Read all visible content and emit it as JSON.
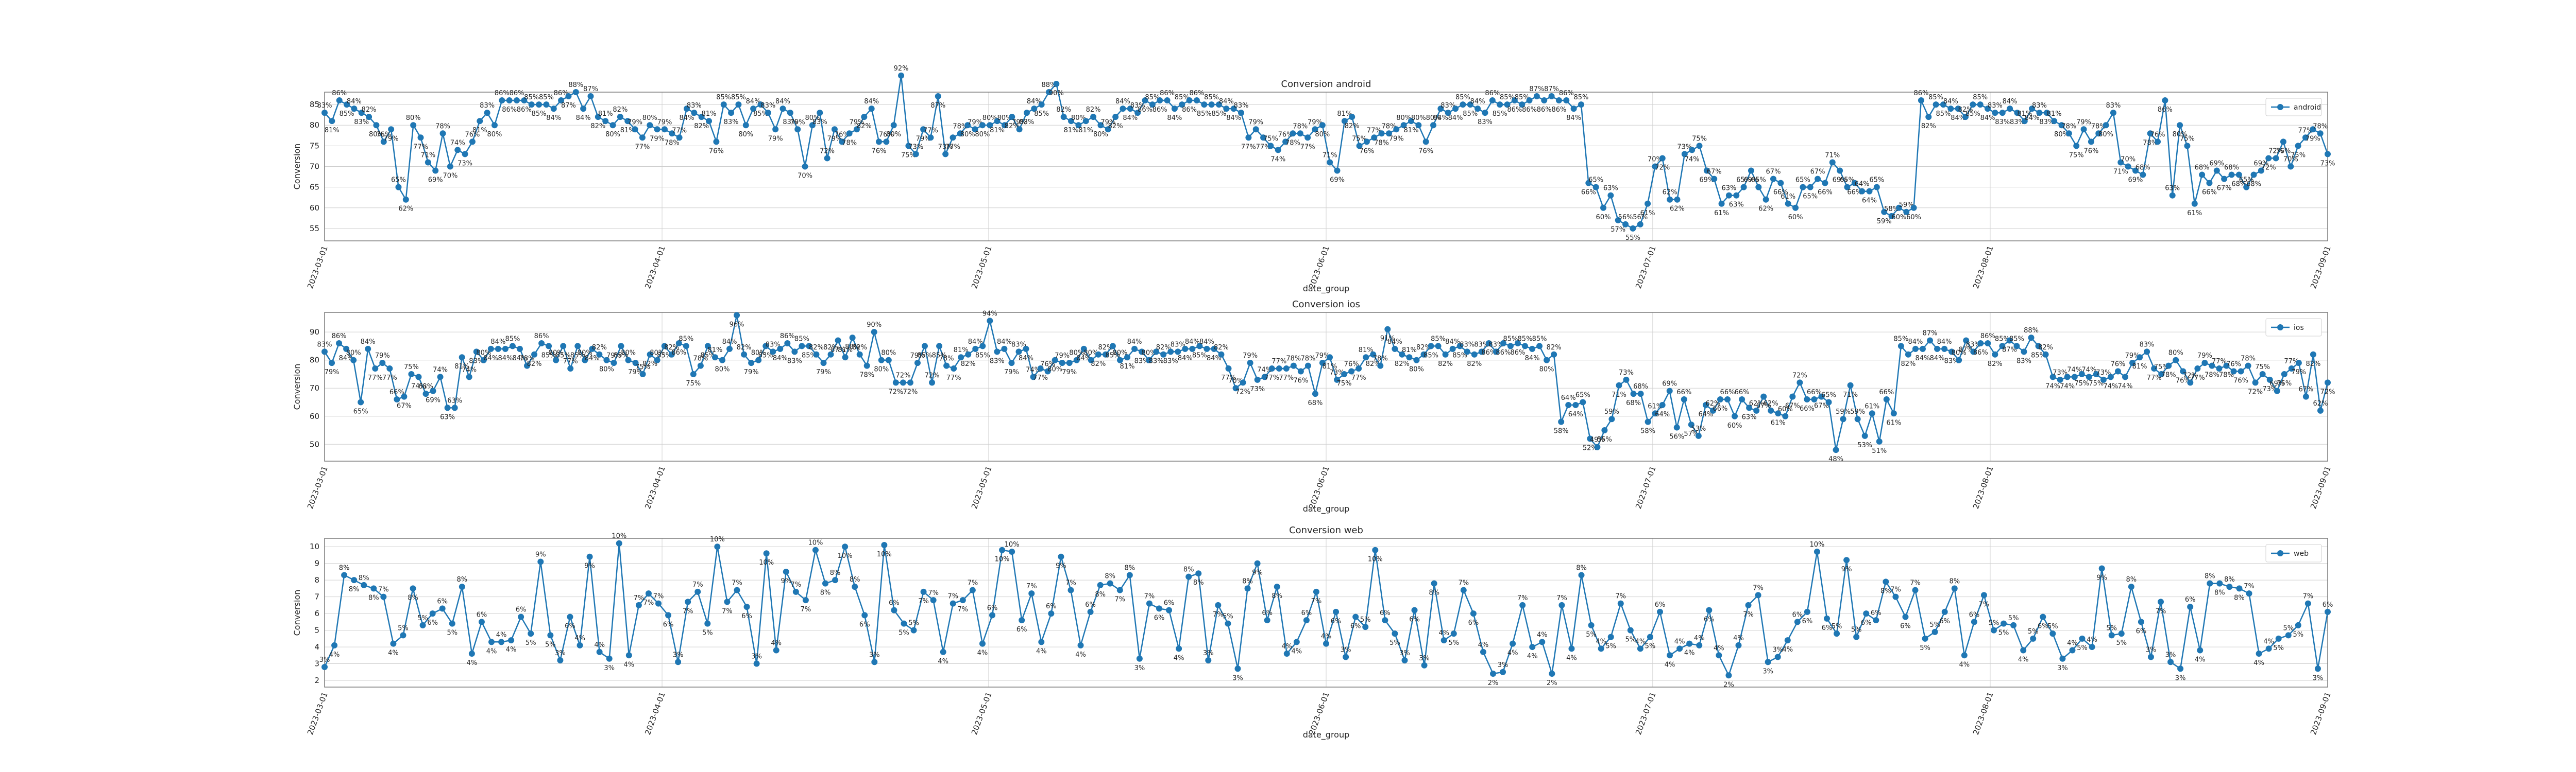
{
  "chart_data": [
    {
      "type": "line",
      "title": "Conversion android",
      "xlabel": "date_group",
      "ylabel": "Conversion",
      "legend": "top-right",
      "grid": true,
      "color": "#1f77b4",
      "ylim": [
        52,
        88
      ],
      "yticks": [
        55,
        60,
        65,
        70,
        75,
        80,
        85
      ],
      "xticks": [
        "2023-03-01",
        "2023-04-01",
        "2023-05-01",
        "2023-06-01",
        "2023-07-01",
        "2023-08-01",
        "2023-09-01"
      ],
      "x_start": "2023-03-01",
      "x_end": "2023-09-01",
      "value_format": "pct",
      "series": [
        {
          "name": "android",
          "values": [
            83,
            81,
            86,
            85,
            84,
            83,
            82,
            80,
            76,
            79,
            65,
            62,
            80,
            77,
            71,
            69,
            78,
            70,
            74,
            73,
            76,
            81,
            83,
            80,
            86,
            86,
            86,
            86,
            85,
            85,
            85,
            84,
            86,
            87,
            88,
            84,
            87,
            82,
            81,
            80,
            82,
            81,
            79,
            77,
            80,
            79,
            79,
            78,
            77,
            84,
            83,
            82,
            81,
            76,
            85,
            83,
            85,
            80,
            84,
            85,
            83,
            79,
            84,
            83,
            79,
            70,
            80,
            83,
            72,
            79,
            76,
            78,
            79,
            82,
            84,
            76,
            76,
            80,
            92,
            75,
            73,
            79,
            77,
            87,
            73,
            77,
            78,
            80,
            79,
            80,
            80,
            81,
            80,
            82,
            79,
            83,
            84,
            85,
            88,
            90,
            82,
            81,
            80,
            81,
            82,
            80,
            79,
            82,
            84,
            84,
            83,
            86,
            85,
            86,
            86,
            84,
            85,
            86,
            86,
            85,
            85,
            85,
            84,
            84,
            83,
            77,
            79,
            77,
            75,
            74,
            76,
            78,
            78,
            77,
            79,
            80,
            71,
            69,
            81,
            82,
            75,
            76,
            77,
            78,
            78,
            79,
            80,
            81,
            80,
            76,
            80,
            84,
            83,
            84,
            85,
            85,
            84,
            83,
            86,
            85,
            85,
            86,
            85,
            86,
            87,
            86,
            87,
            86,
            86,
            84,
            85,
            66,
            65,
            60,
            63,
            57,
            56,
            55,
            56,
            61,
            70,
            72,
            62,
            62,
            73,
            74,
            75,
            69,
            67,
            61,
            63,
            63,
            65,
            69,
            65,
            62,
            67,
            66,
            61,
            60,
            65,
            65,
            67,
            66,
            71,
            69,
            65,
            66,
            64,
            64,
            65,
            59,
            58,
            60,
            59,
            60,
            86,
            82,
            85,
            85,
            84,
            84,
            82,
            85,
            85,
            84,
            83,
            83,
            84,
            83,
            81,
            84,
            83,
            83,
            81,
            80,
            78,
            75,
            79,
            76,
            78,
            80,
            83,
            71,
            70,
            69,
            68,
            78,
            76,
            86,
            63,
            80,
            75,
            61,
            68,
            66,
            69,
            67,
            68,
            68,
            65,
            68,
            69,
            72,
            72,
            76,
            70,
            75,
            77,
            79,
            78,
            73
          ]
        }
      ]
    },
    {
      "type": "line",
      "title": "Conversion ios",
      "xlabel": "date_group",
      "ylabel": "Conversion",
      "legend": "top-right",
      "grid": true,
      "color": "#1f77b4",
      "ylim": [
        44,
        97
      ],
      "yticks": [
        50,
        60,
        70,
        80,
        90
      ],
      "xticks": [
        "2023-03-01",
        "2023-04-01",
        "2023-05-01",
        "2023-06-01",
        "2023-07-01",
        "2023-08-01",
        "2023-09-01"
      ],
      "x_start": "2023-03-01",
      "x_end": "2023-09-01",
      "value_format": "pct",
      "series": [
        {
          "name": "ios",
          "values": [
            83,
            79,
            86,
            84,
            80,
            65,
            84,
            77,
            79,
            77,
            66,
            67,
            75,
            74,
            68,
            69,
            74,
            63,
            63,
            81,
            74,
            83,
            80,
            84,
            84,
            84,
            85,
            84,
            78,
            82,
            86,
            85,
            80,
            85,
            77,
            85,
            80,
            84,
            82,
            80,
            79,
            85,
            80,
            79,
            75,
            82,
            80,
            85,
            82,
            86,
            85,
            75,
            78,
            85,
            81,
            80,
            84,
            96,
            82,
            79,
            80,
            85,
            83,
            84,
            86,
            83,
            85,
            85,
            82,
            79,
            82,
            87,
            81,
            88,
            82,
            78,
            90,
            80,
            80,
            72,
            72,
            72,
            79,
            85,
            72,
            85,
            78,
            77,
            81,
            82,
            84,
            85,
            94,
            83,
            84,
            79,
            83,
            84,
            74,
            77,
            76,
            80,
            79,
            79,
            80,
            84,
            80,
            82,
            82,
            85,
            80,
            81,
            84,
            83,
            80,
            83,
            82,
            83,
            83,
            84,
            84,
            85,
            84,
            84,
            82,
            77,
            70,
            72,
            79,
            73,
            74,
            77,
            77,
            77,
            78,
            76,
            78,
            68,
            79,
            81,
            73,
            75,
            76,
            77,
            81,
            82,
            78,
            91,
            84,
            82,
            81,
            80,
            82,
            85,
            85,
            82,
            84,
            85,
            83,
            82,
            83,
            86,
            83,
            86,
            85,
            86,
            85,
            84,
            85,
            80,
            82,
            58,
            64,
            64,
            65,
            52,
            49,
            55,
            59,
            71,
            73,
            68,
            68,
            58,
            61,
            64,
            69,
            56,
            66,
            57,
            53,
            64,
            62,
            66,
            66,
            60,
            66,
            63,
            62,
            67,
            62,
            61,
            60,
            67,
            72,
            66,
            66,
            67,
            65,
            48,
            59,
            71,
            59,
            53,
            61,
            51,
            66,
            61,
            85,
            82,
            84,
            84,
            87,
            84,
            84,
            83,
            80,
            87,
            83,
            86,
            86,
            82,
            85,
            87,
            85,
            83,
            88,
            85,
            82,
            74,
            73,
            74,
            74,
            75,
            74,
            75,
            73,
            74,
            76,
            74,
            79,
            81,
            83,
            77,
            75,
            78,
            80,
            76,
            72,
            77,
            79,
            78,
            77,
            78,
            76,
            76,
            78,
            72,
            75,
            73,
            69,
            75,
            77,
            79,
            67,
            82,
            62,
            72
          ]
        }
      ]
    },
    {
      "type": "line",
      "title": "Conversion web",
      "xlabel": "date_group",
      "ylabel": "Conversion",
      "legend": "top-right",
      "grid": true,
      "color": "#1f77b4",
      "ylim": [
        1.6,
        10.5
      ],
      "yticks": [
        2,
        3,
        4,
        5,
        6,
        7,
        8,
        9,
        10
      ],
      "xticks": [
        "2023-03-01",
        "2023-04-01",
        "2023-05-01",
        "2023-06-01",
        "2023-07-01",
        "2023-08-01",
        "2023-09-01"
      ],
      "x_start": "2023-03-01",
      "x_end": "2023-09-01",
      "value_format": "int",
      "series": [
        {
          "name": "web",
          "values": [
            2.8,
            4.1,
            8.3,
            8.0,
            7.7,
            7.5,
            7.0,
            4.2,
            4.7,
            7.5,
            5.3,
            6.0,
            6.3,
            5.4,
            7.6,
            3.6,
            5.5,
            4.3,
            4.3,
            4.4,
            5.8,
            4.8,
            9.1,
            4.7,
            3.2,
            5.8,
            4.1,
            9.4,
            3.7,
            3.3,
            10.2,
            3.5,
            6.5,
            7.2,
            6.6,
            5.9,
            3.1,
            6.7,
            7.3,
            5.4,
            10.0,
            6.7,
            7.4,
            6.4,
            3.0,
            9.6,
            3.8,
            8.5,
            7.3,
            6.8,
            9.8,
            7.8,
            8.0,
            10.0,
            7.6,
            5.9,
            3.1,
            10.1,
            6.2,
            5.4,
            5.0,
            7.3,
            6.8,
            3.7,
            6.6,
            6.8,
            7.4,
            4.2,
            5.9,
            9.8,
            9.7,
            5.6,
            7.2,
            4.3,
            6.0,
            9.4,
            7.4,
            4.1,
            6.1,
            7.7,
            7.8,
            7.4,
            8.3,
            3.3,
            6.6,
            6.3,
            6.2,
            3.9,
            8.2,
            8.4,
            3.2,
            6.5,
            5.4,
            2.7,
            7.5,
            9.0,
            5.6,
            7.6,
            3.6,
            4.3,
            5.6,
            7.3,
            4.2,
            6.1,
            3.4,
            5.8,
            5.2,
            9.8,
            5.6,
            4.8,
            3.2,
            6.2,
            2.9,
            7.8,
            4.4,
            4.8,
            7.4,
            6.0,
            3.7,
            2.4,
            2.5,
            4.2,
            6.5,
            4.0,
            4.3,
            2.4,
            6.5,
            3.9,
            8.3,
            5.3,
            3.9,
            4.6,
            6.6,
            5.0,
            3.9,
            4.6,
            6.1,
            3.5,
            3.9,
            4.2,
            4.1,
            6.2,
            3.5,
            2.3,
            4.1,
            6.5,
            7.1,
            3.1,
            3.4,
            4.4,
            5.5,
            6.1,
            9.7,
            5.7,
            4.8,
            9.2,
            4.6,
            6.0,
            5.6,
            7.9,
            7.0,
            5.8,
            7.4,
            4.5,
            4.9,
            6.1,
            7.5,
            3.5,
            5.5,
            7.1,
            5.0,
            5.4,
            5.3,
            3.8,
            4.5,
            5.8,
            4.8,
            3.3,
            3.8,
            4.5,
            4.0,
            8.7,
            4.7,
            4.8,
            7.6,
            5.5,
            3.4,
            6.7,
            3.1,
            2.7,
            6.4,
            3.8,
            7.8,
            7.8,
            7.6,
            7.5,
            7.2,
            3.6,
            3.9,
            4.5,
            4.7,
            5.3,
            6.6,
            2.7,
            6.1
          ]
        }
      ]
    }
  ]
}
